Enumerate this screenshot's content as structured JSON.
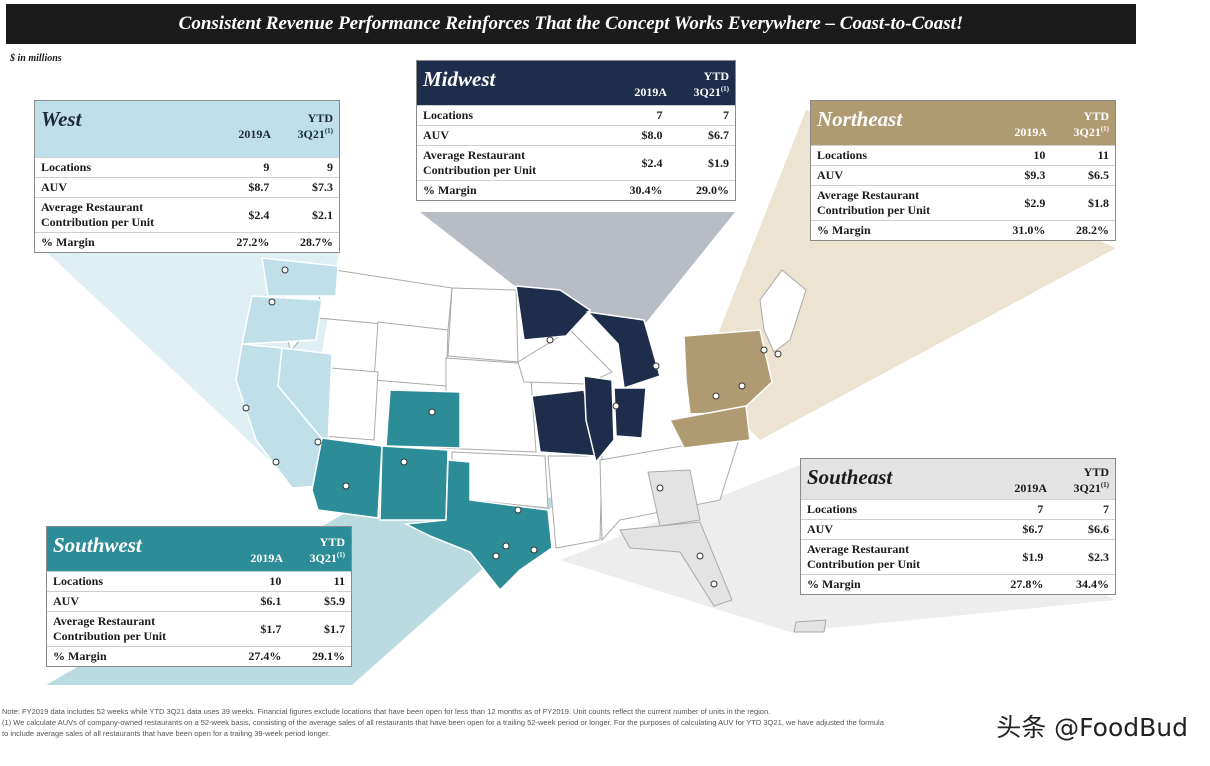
{
  "title": "Consistent Revenue Performance Reinforces That the Concept Works Everywhere – Coast-to-Coast!",
  "units": "$ in millions",
  "columns": {
    "col1": "2019A",
    "ytd_top": "YTD",
    "ytd_bottom": "3Q21",
    "footnote_marker": "(1)"
  },
  "row_labels": {
    "locations": "Locations",
    "auv": "AUV",
    "arc_line1": "Average Restaurant",
    "arc_line2": "Contribution per Unit",
    "margin": "% Margin"
  },
  "regions": {
    "west": {
      "name": "West",
      "locations": [
        "9",
        "9"
      ],
      "auv": [
        "$8.7",
        "$7.3"
      ],
      "arc": [
        "$2.4",
        "$2.1"
      ],
      "margin": [
        "27.2%",
        "28.7%"
      ]
    },
    "midwest": {
      "name": "Midwest",
      "locations": [
        "7",
        "7"
      ],
      "auv": [
        "$8.0",
        "$6.7"
      ],
      "arc": [
        "$2.4",
        "$1.9"
      ],
      "margin": [
        "30.4%",
        "29.0%"
      ]
    },
    "northeast": {
      "name": "Northeast",
      "locations": [
        "10",
        "11"
      ],
      "auv": [
        "$9.3",
        "$6.5"
      ],
      "arc": [
        "$2.9",
        "$1.8"
      ],
      "margin": [
        "31.0%",
        "28.2%"
      ]
    },
    "southeast": {
      "name": "Southeast",
      "locations": [
        "7",
        "7"
      ],
      "auv": [
        "$6.7",
        "$6.6"
      ],
      "arc": [
        "$1.9",
        "$2.3"
      ],
      "margin": [
        "27.8%",
        "34.4%"
      ]
    },
    "southwest": {
      "name": "Southwest",
      "locations": [
        "10",
        "11"
      ],
      "auv": [
        "$6.1",
        "$5.9"
      ],
      "arc": [
        "$1.7",
        "$1.7"
      ],
      "margin": [
        "27.4%",
        "29.1%"
      ]
    }
  },
  "colors": {
    "west": "#bfe0e8",
    "midwest": "#1f2d4c",
    "northeast": "#b09a71",
    "southeast": "#e3e3e3",
    "southwest": "#2c8d98"
  },
  "footnote": {
    "line1": "Note: FY2019 data includes 52 weeks while YTD 3Q21 data uses 39 weeks. Financial figures exclude locations that have been open for less than 12 months as of FY2019. Unit counts reflect the current number of units in the region.",
    "line2": "(1)  We calculate AUVs of company-owned restaurants on a 52-week basis, consisting of the average sales of all restaurants that have been open for a trailing 52-week period or longer. For the purposes of calculating AUV for YTD 3Q21, we have adjusted the formula",
    "line3": "to include average sales of all restaurants that have been open for a trailing 39-week period longer."
  },
  "watermark": "头条 @FoodBud"
}
